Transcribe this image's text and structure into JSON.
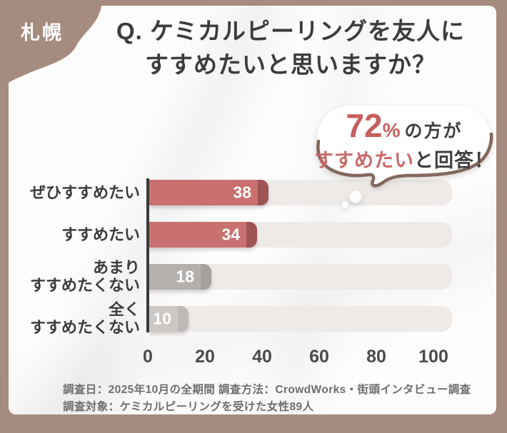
{
  "badge": {
    "label": "札幌"
  },
  "title": {
    "line1": "Q. ケミカルピーリングを友人に",
    "line2": "すすめたいと思いますか？"
  },
  "bubble": {
    "stat": "72",
    "percent_sign": "%",
    "after_stat": "の方が",
    "highlight": "すすめたい",
    "after_highlight": "と回答！"
  },
  "chart_data": {
    "type": "bar",
    "orientation": "horizontal",
    "title": "Q. ケミカルピーリングを友人にすすめたいと思いますか？",
    "categories": [
      "ぜひすすめたい",
      "すすめたい",
      "あまりすすめたくない",
      "全くすすめたくない"
    ],
    "category_lines": [
      [
        "ぜひすすめたい"
      ],
      [
        "すすめたい"
      ],
      [
        "あまり",
        "すすめたくない"
      ],
      [
        "全く",
        "すすめたくない"
      ]
    ],
    "values": [
      38,
      34,
      18,
      10
    ],
    "xticks": [
      "0",
      "20",
      "40",
      "60",
      "80",
      "100"
    ],
    "xlim": [
      0,
      100
    ],
    "grid": false,
    "legend": false,
    "highlighted_total_percent": 72,
    "row_colors": [
      {
        "fill": "#c97170",
        "cap": "#9e5355"
      },
      {
        "fill": "#c97170",
        "cap": "#9e5355"
      },
      {
        "fill": "#b3b0ae",
        "cap": "#a3a09e"
      },
      {
        "fill": "#cbc8c6",
        "cap": "#bcb9b7"
      }
    ],
    "track_color": "#edeae8"
  },
  "footer": {
    "line1": "調査日：2025年10月の全期間 調査方法：CrowdWorks・街頭インタビュー調査",
    "line2": "調査対象：ケミカルピーリングを受けた女性89人"
  },
  "colors": {
    "frame": "#a68b7f",
    "card": "#fdfdfd",
    "accent_red": "#c55f5d",
    "bar_red": "#c97170",
    "text_dark": "#3c3c3e",
    "axis": "#3a3a3b",
    "footer_text": "#6e6e6e",
    "bubble_outline": "#82675c"
  }
}
